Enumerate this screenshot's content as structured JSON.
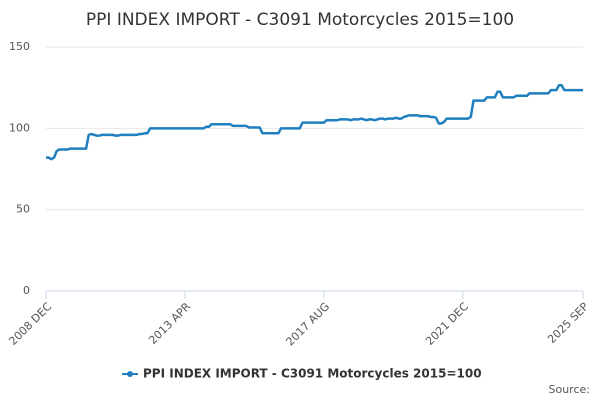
{
  "chart_data": {
    "type": "line",
    "title": "PPI INDEX IMPORT - C3091 Motorcycles 2015=100",
    "source": "Source:",
    "ylim": [
      0,
      150
    ],
    "yticks": [
      0,
      50,
      100,
      150
    ],
    "grid": true,
    "legend": "bottom",
    "categories": [
      "2008 DEC",
      null,
      null,
      null,
      null,
      null,
      null,
      null,
      null,
      null,
      null,
      null,
      null,
      null,
      null,
      null,
      null,
      null,
      null,
      null,
      null,
      null,
      null,
      null,
      null,
      null,
      null,
      null,
      null,
      null,
      null,
      null,
      null,
      null,
      null,
      null,
      null,
      null,
      null,
      null,
      null,
      null,
      null,
      null,
      null,
      null,
      null,
      null,
      null,
      null,
      null,
      null,
      "2013 APR",
      null,
      null,
      null,
      null,
      null,
      null,
      null,
      null,
      null,
      null,
      null,
      null,
      null,
      null,
      null,
      null,
      null,
      null,
      null,
      null,
      null,
      null,
      null,
      null,
      null,
      null,
      null,
      null,
      null,
      null,
      null,
      null,
      null,
      null,
      null,
      null,
      null,
      null,
      null,
      null,
      null,
      null,
      null,
      null,
      null,
      null,
      null,
      null,
      null,
      null,
      null,
      "2017 AUG",
      null,
      null,
      null,
      null,
      null,
      null,
      null,
      null,
      null,
      null,
      null,
      null,
      null,
      null,
      null,
      null,
      null,
      null,
      null,
      null,
      null,
      null,
      null,
      null,
      null,
      null,
      null,
      null,
      null,
      null,
      null,
      null,
      null,
      null,
      null,
      null,
      null,
      null,
      null,
      null,
      null,
      null,
      null,
      null,
      null,
      null,
      null,
      null,
      null,
      null,
      null,
      "2021 DEC",
      null,
      null,
      null,
      null,
      null,
      null,
      null,
      null,
      null,
      null,
      null,
      null,
      null,
      null,
      null,
      null,
      null,
      null,
      null,
      null,
      null,
      null,
      null,
      null,
      null,
      null,
      null,
      null,
      null,
      null,
      null,
      null,
      null,
      null,
      null,
      null,
      null,
      null,
      null,
      null,
      null,
      null,
      null,
      null,
      "2025 SEP"
    ],
    "series": [
      {
        "name": "PPI INDEX IMPORT - C3091 Motorcycles 2015=100",
        "color": "#1f7fbf",
        "values": [
          82,
          82,
          81,
          82,
          86,
          87,
          87,
          87,
          87,
          87.5,
          87.5,
          87.5,
          87.5,
          87.5,
          87.5,
          87.5,
          96,
          96.5,
          96,
          95.5,
          95.5,
          96,
          96,
          96,
          96,
          96,
          95.5,
          95.5,
          96,
          96,
          96,
          96,
          96,
          96,
          96,
          96.5,
          96.5,
          97,
          97,
          100,
          100,
          100,
          100,
          100,
          100,
          100,
          100,
          100,
          100,
          100,
          100,
          100,
          100,
          100,
          100,
          100,
          100,
          100,
          100,
          100,
          101,
          101,
          102.5,
          102.5,
          102.5,
          102.5,
          102.5,
          102.5,
          102.5,
          102.5,
          101.5,
          101.5,
          101.5,
          101.5,
          101.5,
          101.5,
          100.5,
          100.5,
          100.5,
          100.5,
          100.5,
          97,
          97,
          97,
          97,
          97,
          97,
          97,
          100,
          100,
          100,
          100,
          100,
          100,
          100,
          100,
          103.5,
          103.5,
          103.5,
          103.5,
          103.5,
          103.5,
          103.5,
          103.5,
          103.5,
          105,
          105,
          105,
          105,
          105,
          105.5,
          105.5,
          105.5,
          105.5,
          105,
          105.5,
          105.5,
          105.5,
          106,
          105.5,
          105,
          105.5,
          105.5,
          105,
          105.5,
          106,
          106,
          105.5,
          106,
          106,
          106,
          106.5,
          106,
          106,
          107,
          107.5,
          108,
          108,
          108,
          108,
          107.5,
          107.5,
          107.5,
          107.5,
          107,
          107,
          106.5,
          103,
          103,
          104,
          106,
          106,
          106,
          106,
          106,
          106,
          106,
          106,
          106,
          107,
          117,
          117,
          117,
          117,
          117,
          119,
          119,
          119,
          119,
          122.5,
          122.5,
          119,
          119,
          119,
          119,
          119,
          120,
          120,
          120,
          120,
          120,
          121.5,
          121.5,
          121.5,
          121.5,
          121.5,
          121.5,
          121.5,
          121.5,
          123.5,
          123.5,
          123.5,
          126.5,
          126.5,
          123.5,
          123.5,
          123.5,
          123.5,
          123.5,
          123.5,
          123.5,
          123.5
        ]
      }
    ]
  }
}
